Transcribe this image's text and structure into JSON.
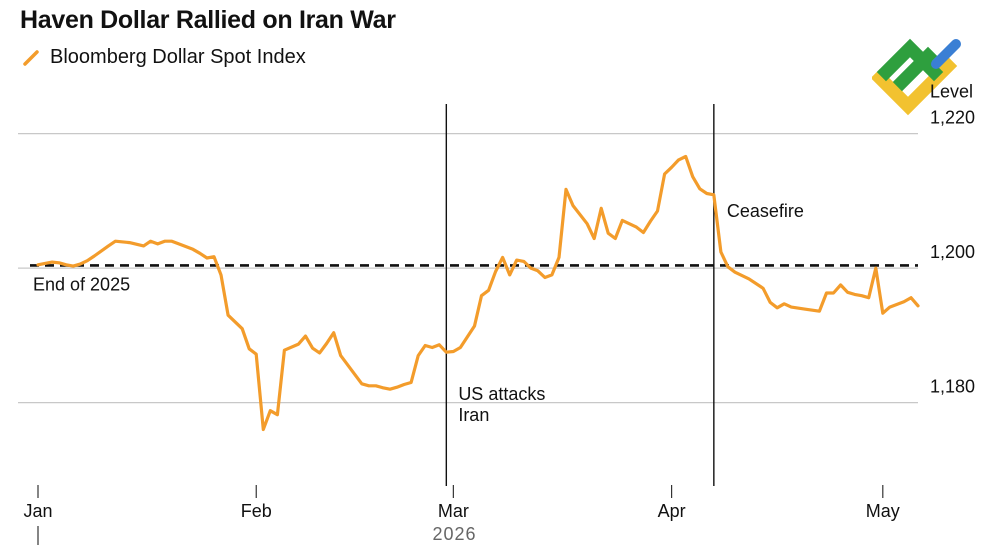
{
  "title": "Haven Dollar Rallied on Iran War",
  "legend": [
    {
      "label": "Bloomberg Dollar Spot Index",
      "color": "#f39c2b"
    }
  ],
  "chart_data": {
    "type": "line",
    "title": "Haven Dollar Rallied on Iran War",
    "ylabel": "Level",
    "xlabel": "2026",
    "ylim": [
      1168.2,
      1225
    ],
    "grid": true,
    "y_ticks": [
      {
        "value": 1220,
        "label": "1,220"
      },
      {
        "value": 1200,
        "label": "1,200"
      },
      {
        "value": 1180,
        "label": "1,180"
      }
    ],
    "x_ticks": [
      {
        "date": "2026-01-01",
        "label": "Jan"
      },
      {
        "date": "2026-02-01",
        "label": "Feb"
      },
      {
        "date": "2026-03-01",
        "label": "Mar"
      },
      {
        "date": "2026-04-01",
        "label": "Apr"
      },
      {
        "date": "2026-05-01",
        "label": "May"
      }
    ],
    "year_label": "2026",
    "reference_line": {
      "value": 1200.4,
      "label": "End of 2025",
      "style": "dashed"
    },
    "annotations": [
      {
        "date": "2026-02-28",
        "label_lines": [
          "US attacks",
          "Iran"
        ]
      },
      {
        "date": "2026-04-07",
        "label_lines": [
          "Ceasefire"
        ]
      }
    ],
    "series": [
      {
        "name": "Bloomberg Dollar Spot Index",
        "color": "#f39c2b",
        "points": [
          [
            "2026-01-01",
            1200.5
          ],
          [
            "2026-01-02",
            1200.7
          ],
          [
            "2026-01-03",
            1200.9
          ],
          [
            "2026-01-04",
            1200.8
          ],
          [
            "2026-01-05",
            1200.5
          ],
          [
            "2026-01-06",
            1200.3
          ],
          [
            "2026-01-07",
            1200.6
          ],
          [
            "2026-01-08",
            1201.1
          ],
          [
            "2026-01-09",
            1201.8
          ],
          [
            "2026-01-11",
            1203.3
          ],
          [
            "2026-01-12",
            1204.0
          ],
          [
            "2026-01-14",
            1203.8
          ],
          [
            "2026-01-16",
            1203.3
          ],
          [
            "2026-01-17",
            1204.0
          ],
          [
            "2026-01-18",
            1203.6
          ],
          [
            "2026-01-19",
            1204.0
          ],
          [
            "2026-01-20",
            1204.0
          ],
          [
            "2026-01-21",
            1203.6
          ],
          [
            "2026-01-23",
            1202.8
          ],
          [
            "2026-01-24",
            1202.2
          ],
          [
            "2026-01-25",
            1201.5
          ],
          [
            "2026-01-26",
            1201.7
          ],
          [
            "2026-01-27",
            1199.0
          ],
          [
            "2026-01-28",
            1193.0
          ],
          [
            "2026-01-30",
            1191.0
          ],
          [
            "2026-01-31",
            1188.0
          ],
          [
            "2026-02-01",
            1187.2
          ],
          [
            "2026-02-02",
            1176.0
          ],
          [
            "2026-02-03",
            1178.8
          ],
          [
            "2026-02-04",
            1178.2
          ],
          [
            "2026-02-05",
            1187.8
          ],
          [
            "2026-02-07",
            1188.7
          ],
          [
            "2026-02-08",
            1189.9
          ],
          [
            "2026-02-09",
            1188.1
          ],
          [
            "2026-02-10",
            1187.4
          ],
          [
            "2026-02-11",
            1188.8
          ],
          [
            "2026-02-12",
            1190.4
          ],
          [
            "2026-02-13",
            1187.0
          ],
          [
            "2026-02-15",
            1184.2
          ],
          [
            "2026-02-16",
            1182.8
          ],
          [
            "2026-02-17",
            1182.5
          ],
          [
            "2026-02-18",
            1182.5
          ],
          [
            "2026-02-19",
            1182.2
          ],
          [
            "2026-02-20",
            1182.0
          ],
          [
            "2026-02-21",
            1182.3
          ],
          [
            "2026-02-22",
            1182.7
          ],
          [
            "2026-02-23",
            1183.0
          ],
          [
            "2026-02-24",
            1187.0
          ],
          [
            "2026-02-25",
            1188.5
          ],
          [
            "2026-02-26",
            1188.2
          ],
          [
            "2026-02-27",
            1188.6
          ],
          [
            "2026-02-28",
            1187.5
          ],
          [
            "2026-03-01",
            1187.6
          ],
          [
            "2026-03-02",
            1188.2
          ],
          [
            "2026-03-04",
            1191.4
          ],
          [
            "2026-03-05",
            1195.9
          ],
          [
            "2026-03-06",
            1196.7
          ],
          [
            "2026-03-07",
            1199.5
          ],
          [
            "2026-03-08",
            1201.6
          ],
          [
            "2026-03-09",
            1199.0
          ],
          [
            "2026-03-10",
            1201.2
          ],
          [
            "2026-03-11",
            1201.0
          ],
          [
            "2026-03-12",
            1200.0
          ],
          [
            "2026-03-13",
            1199.6
          ],
          [
            "2026-03-14",
            1198.6
          ],
          [
            "2026-03-15",
            1199.0
          ],
          [
            "2026-03-16",
            1201.6
          ],
          [
            "2026-03-17",
            1211.7
          ],
          [
            "2026-03-18",
            1209.3
          ],
          [
            "2026-03-20",
            1206.6
          ],
          [
            "2026-03-21",
            1204.4
          ],
          [
            "2026-03-22",
            1208.9
          ],
          [
            "2026-03-23",
            1205.2
          ],
          [
            "2026-03-24",
            1204.4
          ],
          [
            "2026-03-25",
            1207.1
          ],
          [
            "2026-03-27",
            1206.1
          ],
          [
            "2026-03-28",
            1205.3
          ],
          [
            "2026-03-29",
            1207.0
          ],
          [
            "2026-03-30",
            1208.5
          ],
          [
            "2026-03-31",
            1214.0
          ],
          [
            "2026-04-01",
            1215.0
          ],
          [
            "2026-04-02",
            1216.1
          ],
          [
            "2026-04-03",
            1216.6
          ],
          [
            "2026-04-04",
            1213.6
          ],
          [
            "2026-04-05",
            1211.8
          ],
          [
            "2026-04-06",
            1211.1
          ],
          [
            "2026-04-07",
            1210.9
          ],
          [
            "2026-04-08",
            1202.4
          ],
          [
            "2026-04-09",
            1200.2
          ],
          [
            "2026-04-10",
            1199.4
          ],
          [
            "2026-04-12",
            1198.4
          ],
          [
            "2026-04-14",
            1197.0
          ],
          [
            "2026-04-15",
            1194.9
          ],
          [
            "2026-04-16",
            1194.1
          ],
          [
            "2026-04-17",
            1194.7
          ],
          [
            "2026-04-18",
            1194.2
          ],
          [
            "2026-04-20",
            1193.9
          ],
          [
            "2026-04-22",
            1193.6
          ],
          [
            "2026-04-23",
            1196.3
          ],
          [
            "2026-04-24",
            1196.3
          ],
          [
            "2026-04-25",
            1197.5
          ],
          [
            "2026-04-26",
            1196.4
          ],
          [
            "2026-04-27",
            1196.1
          ],
          [
            "2026-04-28",
            1195.9
          ],
          [
            "2026-04-29",
            1195.6
          ],
          [
            "2026-04-30",
            1200.0
          ],
          [
            "2026-05-01",
            1193.3
          ],
          [
            "2026-05-02",
            1194.2
          ],
          [
            "2026-05-04",
            1195.0
          ],
          [
            "2026-05-05",
            1195.6
          ],
          [
            "2026-05-06",
            1194.4
          ]
        ]
      }
    ]
  },
  "logo": {
    "colors": [
      "#2e9f3e",
      "#f2c230",
      "#3a7fd4"
    ]
  }
}
